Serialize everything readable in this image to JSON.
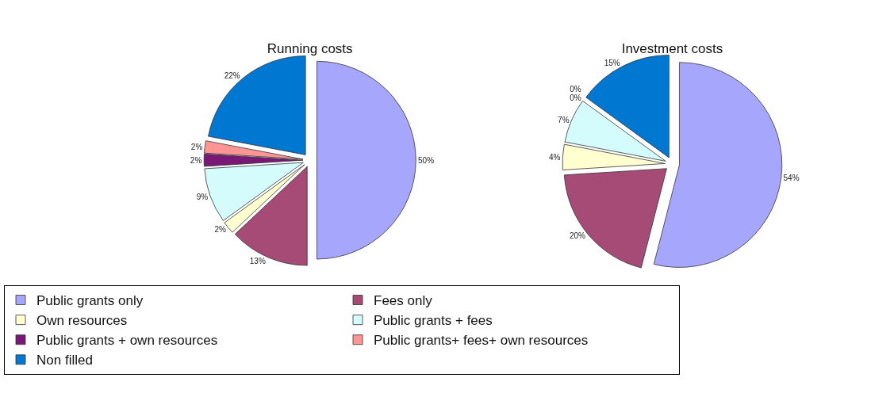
{
  "chart_data": [
    {
      "type": "pie",
      "title": "Running costs",
      "legend": "bottom",
      "categories": [
        "Public grants only",
        "Fees only",
        "Own resources",
        "Public grants + fees",
        "Public grants + own resources",
        "Public grants+ fees+ own resources",
        "Non filled"
      ],
      "values": [
        50,
        13,
        2,
        9,
        2,
        2,
        22
      ],
      "value_labels": [
        "50%",
        "13%",
        "2%",
        "9%",
        "2%",
        "2%",
        "22%"
      ],
      "colors": [
        "#a6a6fc",
        "#a64a76",
        "#ffffd0",
        "#d4fcfc",
        "#7a1878",
        "#ff9494",
        "#0077d0"
      ]
    },
    {
      "type": "pie",
      "title": "Investment costs",
      "legend": false,
      "categories": [
        null,
        null,
        null,
        null,
        null,
        null,
        null
      ],
      "values": [
        54,
        20,
        4,
        7,
        0,
        0,
        15
      ],
      "value_labels": [
        "54%",
        "20%",
        "4%",
        "7%",
        "0%",
        "0%",
        "15%"
      ],
      "colors": [
        "#a6a6fc",
        "#a64a76",
        "#ffffd0",
        "#d4fcfc",
        "#7a1878",
        "#ff9494",
        "#0077d0"
      ]
    }
  ]
}
